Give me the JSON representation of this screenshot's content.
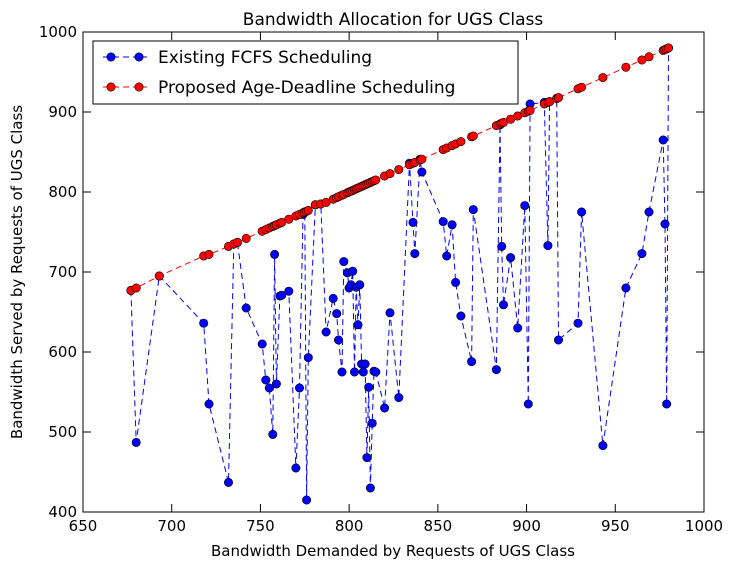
{
  "chart_data": {
    "type": "line",
    "title": "Bandwidth Allocation for UGS Class",
    "xlabel": "Bandwidth Demanded by Requests of UGS Class",
    "ylabel": "Bandwidth Served by Requests of UGS Class",
    "xlim": [
      650,
      1000
    ],
    "ylim": [
      400,
      1000
    ],
    "xticks": [
      650,
      700,
      750,
      800,
      850,
      900,
      950,
      1000
    ],
    "yticks": [
      400,
      500,
      600,
      700,
      800,
      900,
      1000
    ],
    "grid": false,
    "legend_position": "top-left",
    "x": [
      677,
      680,
      693,
      718,
      721,
      732,
      735,
      737,
      742,
      751,
      753,
      755,
      757,
      758,
      759,
      761,
      762,
      766,
      770,
      772,
      774,
      775,
      776,
      777,
      781,
      784,
      787,
      791,
      793,
      794,
      796,
      797,
      799,
      800,
      801,
      802,
      803,
      804,
      805,
      806,
      807,
      808,
      809,
      810,
      811,
      812,
      813,
      814,
      815,
      820,
      823,
      828,
      834,
      836,
      837,
      840,
      841,
      853,
      855,
      858,
      860,
      863,
      869,
      870,
      883,
      885,
      886,
      887,
      891,
      895,
      899,
      901,
      902,
      910,
      912,
      913,
      917,
      918,
      929,
      931,
      943,
      956,
      965,
      969,
      977,
      978,
      979,
      980
    ],
    "series": [
      {
        "name": "Existing FCFS Scheduling",
        "color": "#0000ff",
        "values": [
          677,
          487,
          695,
          636,
          535,
          437,
          735,
          737,
          655,
          610,
          565,
          555,
          497,
          722,
          560,
          670,
          671,
          676,
          455,
          555,
          772,
          775,
          415,
          593,
          784,
          785,
          625,
          667,
          648,
          615,
          575,
          713,
          699,
          680,
          684,
          701,
          575,
          681,
          634,
          684,
          585,
          575,
          585,
          468,
          556,
          430,
          511,
          576,
          575,
          530,
          649,
          543,
          836,
          762,
          723,
          841,
          825,
          763,
          720,
          759,
          687,
          645,
          588,
          778,
          578,
          884,
          732,
          659,
          718,
          630,
          783,
          535,
          910,
          912,
          733,
          913,
          917,
          615,
          636,
          775,
          483,
          680,
          723,
          775,
          865,
          760,
          535,
          980
        ]
      },
      {
        "name": "Proposed Age-Deadline Scheduling",
        "color": "#ff0000",
        "values": [
          677,
          680,
          695,
          720,
          722,
          732,
          735,
          737,
          742,
          751,
          753,
          755,
          757,
          758,
          759,
          761,
          762,
          766,
          770,
          772,
          774,
          775,
          776,
          777,
          784,
          785,
          787,
          791,
          793,
          794,
          796,
          797,
          799,
          800,
          801,
          802,
          803,
          804,
          805,
          806,
          807,
          808,
          809,
          810,
          811,
          812,
          813,
          814,
          815,
          820,
          823,
          828,
          834,
          836,
          837,
          840,
          841,
          853,
          855,
          858,
          860,
          863,
          869,
          870,
          883,
          885,
          886,
          887,
          891,
          895,
          899,
          901,
          902,
          910,
          912,
          913,
          917,
          918,
          929,
          931,
          943,
          956,
          965,
          969,
          977,
          978,
          979,
          980
        ]
      }
    ]
  }
}
